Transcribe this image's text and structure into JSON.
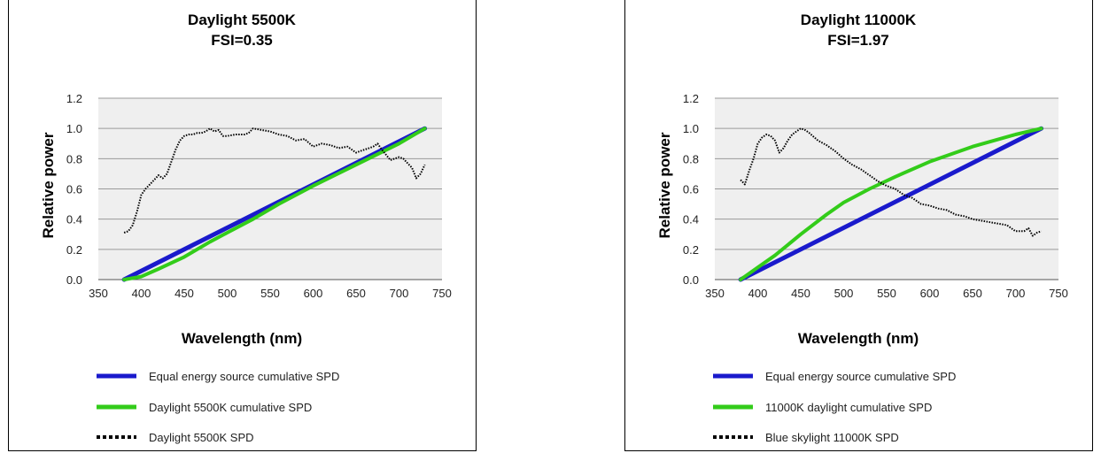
{
  "chart_data": [
    {
      "type": "line",
      "title": "Daylight 5500K",
      "subtitle": "FSI=0.35",
      "xlabel": "Wavelength (nm)",
      "ylabel": "Relative power",
      "xlim": [
        350,
        750
      ],
      "ylim": [
        0,
        1.2
      ],
      "xticks": [
        350,
        400,
        450,
        500,
        550,
        600,
        650,
        700,
        750
      ],
      "yticks": [
        0,
        0.2,
        0.4,
        0.6,
        0.8,
        1.0,
        1.2
      ],
      "xtick_labels": [
        "350",
        "400",
        "450",
        "500",
        "550",
        "600",
        "650",
        "700",
        "750"
      ],
      "ytick_labels": [
        "0.0",
        "0.2",
        "0.4",
        "0.6",
        "0.8",
        "1.0",
        "1.2"
      ],
      "grid": "horizontal",
      "legend_position": "bottom",
      "series": [
        {
          "name": "Equal energy source cumulative SPD",
          "color": "#1a1acc",
          "style": "solid",
          "x": [
            380,
            730
          ],
          "y": [
            0,
            1.0
          ]
        },
        {
          "name": "Daylight 5500K cumulative SPD",
          "color": "#33cc1a",
          "style": "solid",
          "x": [
            380,
            400,
            420,
            450,
            480,
            500,
            530,
            560,
            600,
            650,
            700,
            730
          ],
          "y": [
            0,
            0.02,
            0.07,
            0.15,
            0.25,
            0.31,
            0.4,
            0.5,
            0.62,
            0.76,
            0.9,
            1.0
          ]
        },
        {
          "name": "Daylight 5500K SPD",
          "color": "#000000",
          "style": "dotted",
          "x": [
            380,
            385,
            390,
            395,
            400,
            405,
            410,
            415,
            420,
            425,
            430,
            435,
            440,
            445,
            450,
            455,
            460,
            465,
            470,
            475,
            480,
            485,
            490,
            495,
            500,
            510,
            520,
            525,
            530,
            540,
            550,
            560,
            570,
            580,
            590,
            600,
            610,
            620,
            630,
            640,
            650,
            660,
            670,
            675,
            680,
            690,
            700,
            705,
            710,
            715,
            720,
            725,
            730
          ],
          "y": [
            0.31,
            0.32,
            0.36,
            0.45,
            0.56,
            0.6,
            0.63,
            0.66,
            0.69,
            0.67,
            0.7,
            0.78,
            0.86,
            0.92,
            0.95,
            0.96,
            0.96,
            0.97,
            0.97,
            0.98,
            1.0,
            0.98,
            0.99,
            0.95,
            0.95,
            0.96,
            0.96,
            0.97,
            1.0,
            0.99,
            0.98,
            0.96,
            0.95,
            0.92,
            0.93,
            0.88,
            0.9,
            0.89,
            0.87,
            0.88,
            0.84,
            0.86,
            0.88,
            0.9,
            0.86,
            0.79,
            0.81,
            0.8,
            0.77,
            0.74,
            0.67,
            0.7,
            0.76
          ]
        }
      ]
    },
    {
      "type": "line",
      "title": "Daylight 11000K",
      "subtitle": "FSI=1.97",
      "xlabel": "Wavelength (nm)",
      "ylabel": "Relative power",
      "xlim": [
        350,
        750
      ],
      "ylim": [
        0,
        1.2
      ],
      "xticks": [
        350,
        400,
        450,
        500,
        550,
        600,
        650,
        700,
        750
      ],
      "yticks": [
        0,
        0.2,
        0.4,
        0.6,
        0.8,
        1.0,
        1.2
      ],
      "xtick_labels": [
        "350",
        "400",
        "450",
        "500",
        "550",
        "600",
        "650",
        "700",
        "750"
      ],
      "ytick_labels": [
        "0.0",
        "0.2",
        "0.4",
        "0.6",
        "0.8",
        "1.0",
        "1.2"
      ],
      "grid": "horizontal",
      "legend_position": "bottom",
      "series": [
        {
          "name": "Equal energy source cumulative SPD",
          "color": "#1a1acc",
          "style": "solid",
          "x": [
            380,
            730
          ],
          "y": [
            0,
            1.0
          ]
        },
        {
          "name": "11000K daylight cumulative SPD",
          "color": "#33cc1a",
          "style": "solid",
          "x": [
            380,
            400,
            420,
            450,
            480,
            500,
            530,
            560,
            600,
            650,
            700,
            730
          ],
          "y": [
            0,
            0.08,
            0.16,
            0.3,
            0.43,
            0.51,
            0.6,
            0.68,
            0.78,
            0.88,
            0.96,
            1.0
          ]
        },
        {
          "name": "Blue skylight 11000K SPD",
          "color": "#000000",
          "style": "dotted",
          "x": [
            380,
            385,
            390,
            395,
            400,
            405,
            410,
            415,
            420,
            425,
            430,
            435,
            440,
            445,
            450,
            455,
            460,
            470,
            480,
            490,
            500,
            510,
            520,
            530,
            540,
            550,
            560,
            570,
            580,
            590,
            600,
            610,
            620,
            630,
            640,
            650,
            660,
            670,
            680,
            690,
            700,
            710,
            715,
            720,
            725,
            730
          ],
          "y": [
            0.66,
            0.63,
            0.72,
            0.8,
            0.9,
            0.94,
            0.96,
            0.95,
            0.92,
            0.84,
            0.87,
            0.92,
            0.96,
            0.98,
            1.0,
            0.99,
            0.97,
            0.92,
            0.89,
            0.85,
            0.8,
            0.76,
            0.73,
            0.69,
            0.65,
            0.62,
            0.6,
            0.56,
            0.54,
            0.5,
            0.49,
            0.47,
            0.46,
            0.43,
            0.42,
            0.4,
            0.39,
            0.38,
            0.37,
            0.36,
            0.32,
            0.32,
            0.34,
            0.29,
            0.31,
            0.32
          ]
        }
      ]
    }
  ]
}
